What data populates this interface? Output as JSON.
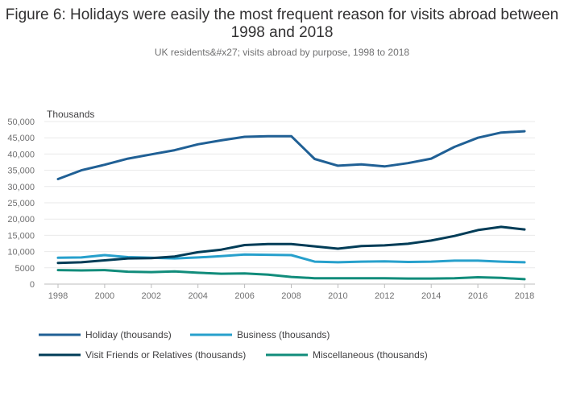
{
  "chart_data": {
    "type": "line",
    "title": "Figure 6: Holidays were easily the most frequent reason for visits abroad between 1998 and 2018",
    "subtitle": "UK residents&#x27; visits abroad by purpose, 1998 to 2018",
    "ylabel": "Thousands",
    "xlabel": "",
    "ylim": [
      0,
      50000
    ],
    "yticks": [
      0,
      5000,
      10000,
      15000,
      20000,
      25000,
      30000,
      35000,
      40000,
      45000,
      50000
    ],
    "ytick_labels": [
      "0",
      "5000",
      "10,000",
      "15,000",
      "20,000",
      "25,000",
      "30,000",
      "35,000",
      "40,000",
      "45,000",
      "50,000"
    ],
    "xticks": [
      1998,
      2000,
      2002,
      2004,
      2006,
      2008,
      2010,
      2012,
      2014,
      2016,
      2018
    ],
    "xtick_labels": [
      "1998",
      "2000",
      "2002",
      "2004",
      "2006",
      "2008",
      "2010",
      "2012",
      "2014",
      "2016",
      "2018"
    ],
    "x": [
      1998,
      1999,
      2000,
      2001,
      2002,
      2003,
      2004,
      2005,
      2006,
      2007,
      2008,
      2009,
      2010,
      2011,
      2012,
      2013,
      2014,
      2015,
      2016,
      2017,
      2018
    ],
    "series": [
      {
        "name": "Holiday (thousands)",
        "color": "#206095",
        "values": [
          32300,
          35000,
          36700,
          38600,
          39900,
          41200,
          43000,
          44200,
          45300,
          45500,
          45500,
          38500,
          36400,
          36800,
          36200,
          37200,
          38600,
          42200,
          45000,
          46600,
          47000
        ]
      },
      {
        "name": "Business (thousands)",
        "color": "#27a0cc",
        "values": [
          8100,
          8200,
          8900,
          8300,
          8100,
          7900,
          8200,
          8600,
          9100,
          9000,
          8900,
          6900,
          6700,
          6900,
          7000,
          6800,
          6900,
          7200,
          7200,
          6900,
          6700
        ]
      },
      {
        "name": "Visit Friends or Relatives (thousands)",
        "color": "#003c57",
        "values": [
          6500,
          6700,
          7300,
          7900,
          8000,
          8500,
          9800,
          10600,
          12000,
          12300,
          12300,
          11600,
          10900,
          11700,
          11900,
          12400,
          13400,
          14800,
          16600,
          17600,
          16800
        ]
      },
      {
        "name": "Miscellaneous (thousands)",
        "color": "#118c7b",
        "values": [
          4300,
          4200,
          4300,
          3800,
          3700,
          3900,
          3500,
          3200,
          3300,
          2900,
          2200,
          1800,
          1800,
          1800,
          1800,
          1700,
          1700,
          1800,
          2100,
          1900,
          1500
        ]
      }
    ],
    "grid": true,
    "legend_position": "bottom"
  }
}
